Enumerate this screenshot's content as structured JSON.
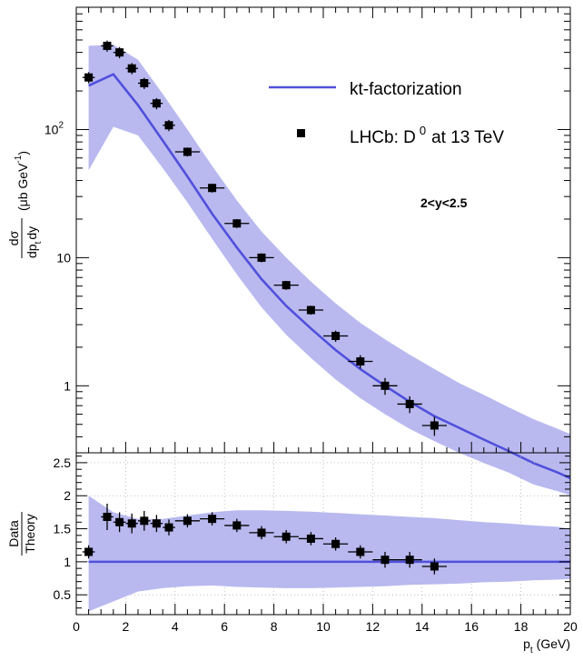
{
  "chart_data": [
    {
      "type": "scatter",
      "panel": "spectrum",
      "ylabel": "dσ/dp_t dy (μb GeV⁻¹)",
      "ylabel_parts": {
        "num": "dσ",
        "den": "dp",
        "den_sub": "t",
        "den_tail": "dy",
        "unit": "(μb GeV",
        "unit_sup": "-1",
        "unit_close": ")"
      },
      "yscale": "log",
      "xlim": [
        0,
        20
      ],
      "ylim": [
        0.3,
        900
      ],
      "y_ticks": [
        {
          "value": 1,
          "label": "1"
        },
        {
          "value": 10,
          "label": "10"
        },
        {
          "value": 100,
          "label": "10",
          "sup": "2"
        }
      ],
      "annotation": "2<y<2.5",
      "legend": {
        "position": "top-right",
        "line_label": "kt-factorization",
        "marker_label": "LHCb: D",
        "marker_label_sup": "0",
        "marker_label_tail": "at 13 TeV"
      },
      "theory": {
        "name": "kt-factorization",
        "color": "#5050dc",
        "band_color": "#b9b9f0",
        "x": [
          0.5,
          1.5,
          2.5,
          3.5,
          4.5,
          5.5,
          6.5,
          7.5,
          8.5,
          9.5,
          10.5,
          11.5,
          12.5,
          13.5,
          14.5,
          15.5,
          16.5,
          17.5,
          18.5,
          19.5,
          20
        ],
        "central": [
          220,
          270,
          155,
          82,
          43,
          22,
          12,
          6.8,
          4.2,
          2.8,
          1.9,
          1.35,
          1.0,
          0.75,
          0.58,
          0.47,
          0.38,
          0.31,
          0.25,
          0.21,
          0.19
        ],
        "band_low": [
          48,
          105,
          90,
          50,
          27,
          14,
          7.4,
          4.1,
          2.5,
          1.65,
          1.12,
          0.8,
          0.6,
          0.46,
          0.37,
          0.3,
          0.25,
          0.21,
          0.17,
          0.15,
          0.14
        ],
        "band_high": [
          450,
          460,
          350,
          190,
          100,
          52,
          28,
          16,
          10,
          6.5,
          4.4,
          3.1,
          2.3,
          1.75,
          1.35,
          1.05,
          0.85,
          0.68,
          0.55,
          0.46,
          0.42
        ]
      },
      "data": {
        "name": "LHCb: D0 at 13 TeV",
        "x": [
          0.5,
          1.25,
          1.75,
          2.25,
          2.75,
          3.25,
          3.75,
          4.5,
          5.5,
          6.5,
          7.5,
          8.5,
          9.5,
          10.5,
          11.5,
          12.5,
          13.5,
          14.5
        ],
        "xerr": [
          0.25,
          0.25,
          0.25,
          0.25,
          0.25,
          0.25,
          0.25,
          0.5,
          0.5,
          0.5,
          0.5,
          0.5,
          0.5,
          0.5,
          0.5,
          0.5,
          0.5,
          0.5
        ],
        "y": [
          255,
          450,
          400,
          300,
          230,
          160,
          108,
          67,
          35,
          18.5,
          10,
          6.1,
          3.9,
          2.45,
          1.55,
          1.0,
          0.72,
          0.49
        ],
        "yerr": [
          0.1,
          0.1,
          0.1,
          0.1,
          0.1,
          0.1,
          0.1,
          0.08,
          0.08,
          0.08,
          0.08,
          0.08,
          0.08,
          0.1,
          0.12,
          0.15,
          0.15,
          0.17
        ]
      }
    },
    {
      "type": "scatter",
      "panel": "ratio",
      "xlabel": "p_t (GeV)",
      "xlabel_parts": {
        "main": "p",
        "sub": "t",
        "tail": "(GeV)"
      },
      "ylabel": "Data/Theory",
      "ylabel_parts": {
        "num": "Data",
        "den": "Theory"
      },
      "xlim": [
        0,
        20
      ],
      "ylim": [
        0.2,
        2.65
      ],
      "x_ticks": [
        0,
        2,
        4,
        6,
        8,
        10,
        12,
        14,
        16,
        18,
        20
      ],
      "y_ticks": [
        0.5,
        1,
        1.5,
        2,
        2.5
      ],
      "y_tick_labels": [
        "0.5",
        "1",
        "1.5",
        "2",
        "2.5"
      ],
      "grid": true,
      "unity_line": 1.0,
      "band": {
        "x": [
          0.5,
          1.5,
          2.5,
          3.5,
          4.5,
          5.5,
          6.5,
          7.5,
          8.5,
          9.5,
          10.5,
          11.5,
          12.5,
          13.5,
          14.5,
          15.5,
          16.5,
          17.5,
          18.5,
          19.5,
          20
        ],
        "low": [
          0.25,
          0.4,
          0.55,
          0.6,
          0.63,
          0.64,
          0.62,
          0.61,
          0.6,
          0.6,
          0.61,
          0.62,
          0.63,
          0.65,
          0.66,
          0.67,
          0.69,
          0.7,
          0.72,
          0.73,
          0.74
        ],
        "high": [
          2.0,
          1.75,
          1.65,
          1.65,
          1.7,
          1.75,
          1.78,
          1.78,
          1.77,
          1.76,
          1.74,
          1.72,
          1.7,
          1.68,
          1.66,
          1.63,
          1.6,
          1.58,
          1.55,
          1.53,
          1.5
        ]
      },
      "data": {
        "x": [
          0.5,
          1.25,
          1.75,
          2.25,
          2.75,
          3.25,
          3.75,
          4.5,
          5.5,
          6.5,
          7.5,
          8.5,
          9.5,
          10.5,
          11.5,
          12.5,
          13.5,
          14.5
        ],
        "xerr": [
          0.25,
          0.25,
          0.25,
          0.25,
          0.25,
          0.25,
          0.25,
          0.5,
          0.5,
          0.5,
          0.5,
          0.5,
          0.5,
          0.5,
          0.5,
          0.5,
          0.5,
          0.5
        ],
        "y": [
          1.15,
          1.68,
          1.6,
          1.58,
          1.62,
          1.58,
          1.52,
          1.62,
          1.65,
          1.55,
          1.44,
          1.38,
          1.35,
          1.27,
          1.15,
          1.03,
          1.03,
          0.93
        ],
        "yerr": [
          0.1,
          0.2,
          0.15,
          0.15,
          0.15,
          0.13,
          0.12,
          0.1,
          0.1,
          0.1,
          0.1,
          0.1,
          0.1,
          0.1,
          0.1,
          0.12,
          0.12,
          0.12
        ]
      }
    }
  ]
}
